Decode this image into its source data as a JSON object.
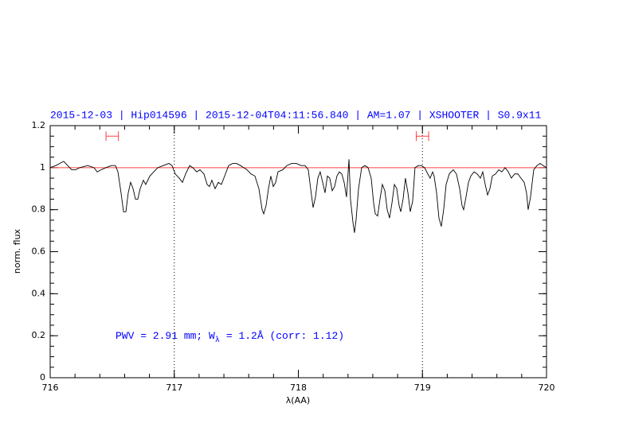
{
  "chart_data": {
    "type": "line",
    "title": "2015-12-03 | Hip014596 | 2015-12-04T04:11:56.840 | AM=1.07 | XSHOOTER | S0.9x11",
    "x_label": "λ(AA)",
    "y_label": "norm. flux",
    "annotation": [
      "PWV = 2.91 mm; W",
      "λ",
      "= 1.2Å (corr: 1.12)"
    ],
    "xlim": [
      716,
      720
    ],
    "ylim": [
      0,
      1.2
    ],
    "xticks": [
      716,
      717,
      718,
      719,
      720
    ],
    "yticks": [
      0,
      0.2,
      0.4,
      0.6,
      0.8,
      1,
      1.2
    ],
    "minor_ticks": {
      "x": 0.2,
      "y": 0.05
    },
    "reference_line": {
      "y": 1,
      "color": "#ff4040"
    },
    "vlines": [
      717,
      719
    ],
    "intervals": {
      "y": 1.15,
      "color": "#ff4040",
      "ranges": [
        [
          716.45,
          716.55
        ],
        [
          718.95,
          719.05
        ]
      ]
    },
    "series": [
      {
        "name": "spectrum",
        "color": "#000000",
        "x": [
          716.0,
          716.045,
          716.109,
          716.173,
          716.205,
          716.238,
          716.302,
          716.353,
          716.379,
          716.411,
          716.449,
          716.494,
          716.526,
          716.546,
          716.571,
          716.591,
          716.61,
          716.629,
          716.648,
          716.668,
          716.687,
          716.706,
          716.725,
          716.751,
          716.77,
          716.803,
          716.835,
          716.867,
          716.912,
          716.957,
          716.982,
          717.008,
          717.04,
          717.066,
          717.091,
          717.124,
          717.149,
          717.181,
          717.207,
          717.239,
          717.265,
          717.284,
          717.303,
          717.329,
          717.355,
          717.38,
          717.406,
          717.438,
          717.47,
          717.502,
          717.534,
          717.56,
          717.586,
          717.618,
          717.65,
          717.682,
          717.708,
          717.721,
          717.74,
          717.759,
          717.778,
          717.798,
          717.817,
          717.836,
          717.875,
          717.907,
          717.945,
          717.984,
          718.022,
          718.054,
          718.08,
          718.099,
          718.119,
          718.138,
          718.157,
          718.176,
          718.196,
          718.215,
          718.234,
          718.253,
          718.273,
          718.292,
          718.311,
          718.33,
          718.35,
          718.369,
          718.388,
          718.408,
          718.42,
          718.44,
          718.452,
          718.465,
          718.485,
          718.51,
          718.536,
          718.562,
          718.587,
          718.607,
          718.62,
          718.639,
          718.658,
          718.677,
          718.697,
          718.716,
          718.735,
          718.754,
          718.774,
          718.793,
          718.812,
          718.825,
          718.844,
          718.863,
          718.883,
          718.902,
          718.921,
          718.94,
          718.966,
          718.992,
          719.017,
          719.043,
          719.062,
          719.082,
          719.094,
          719.114,
          719.133,
          719.152,
          719.171,
          719.191,
          719.216,
          719.248,
          719.274,
          719.3,
          719.319,
          719.332,
          719.351,
          719.371,
          719.39,
          719.416,
          719.441,
          719.467,
          719.486,
          719.506,
          719.525,
          719.544,
          719.563,
          719.589,
          719.615,
          719.64,
          719.666,
          719.692,
          719.717,
          719.743,
          719.769,
          719.794,
          719.82,
          719.839,
          719.852,
          719.871,
          719.897,
          719.923,
          719.948,
          719.974,
          720.0
        ],
        "values": [
          1.0,
          1.01,
          1.03,
          0.99,
          0.99,
          1.0,
          1.01,
          1.0,
          0.98,
          0.99,
          1.0,
          1.01,
          1.01,
          0.98,
          0.88,
          0.79,
          0.79,
          0.88,
          0.93,
          0.9,
          0.85,
          0.85,
          0.9,
          0.94,
          0.92,
          0.96,
          0.98,
          1.0,
          1.01,
          1.02,
          1.01,
          0.97,
          0.95,
          0.93,
          0.97,
          1.01,
          1.0,
          0.98,
          0.99,
          0.97,
          0.92,
          0.91,
          0.94,
          0.9,
          0.93,
          0.92,
          0.96,
          1.01,
          1.02,
          1.02,
          1.01,
          1.0,
          0.99,
          0.97,
          0.96,
          0.9,
          0.8,
          0.78,
          0.82,
          0.9,
          0.96,
          0.91,
          0.93,
          0.98,
          0.99,
          1.01,
          1.02,
          1.02,
          1.01,
          1.01,
          0.99,
          0.9,
          0.81,
          0.86,
          0.95,
          0.98,
          0.93,
          0.88,
          0.96,
          0.95,
          0.89,
          0.91,
          0.96,
          0.98,
          0.97,
          0.93,
          0.86,
          1.04,
          0.85,
          0.74,
          0.69,
          0.75,
          0.9,
          1.0,
          1.01,
          1.0,
          0.95,
          0.83,
          0.78,
          0.77,
          0.85,
          0.92,
          0.89,
          0.8,
          0.76,
          0.83,
          0.92,
          0.9,
          0.82,
          0.79,
          0.85,
          0.95,
          0.88,
          0.79,
          0.84,
          1.0,
          1.01,
          1.01,
          1.0,
          0.97,
          0.95,
          0.98,
          0.96,
          0.88,
          0.76,
          0.72,
          0.8,
          0.92,
          0.97,
          0.99,
          0.97,
          0.9,
          0.82,
          0.8,
          0.86,
          0.93,
          0.96,
          0.98,
          0.97,
          0.95,
          0.98,
          0.92,
          0.87,
          0.9,
          0.96,
          0.97,
          0.99,
          0.98,
          1.0,
          0.98,
          0.95,
          0.97,
          0.97,
          0.95,
          0.93,
          0.88,
          0.8,
          0.86,
          0.99,
          1.01,
          1.02,
          1.01,
          1.0
        ]
      }
    ]
  }
}
